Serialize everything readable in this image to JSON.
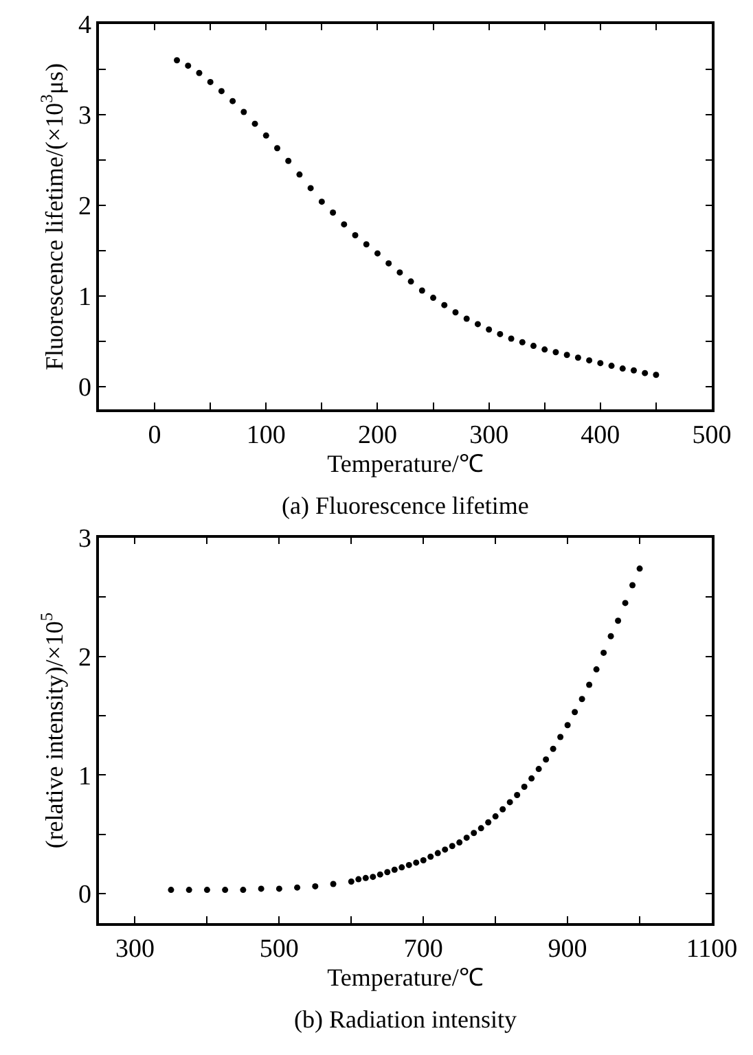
{
  "chart_data": [
    {
      "type": "scatter",
      "title": "(a) Fluorescence lifetime",
      "xlabel": "Temperature/℃",
      "ylabel": "Fluorescence lifetime/(×10$^{3}$μs)",
      "marker": "circle",
      "x": [
        20,
        30,
        40,
        50,
        60,
        70,
        80,
        90,
        100,
        110,
        120,
        130,
        140,
        150,
        160,
        170,
        180,
        190,
        200,
        210,
        220,
        230,
        240,
        250,
        260,
        270,
        280,
        290,
        300,
        310,
        320,
        330,
        340,
        350,
        360,
        370,
        380,
        390,
        400,
        410,
        420,
        430,
        440,
        450
      ],
      "series": [
        {
          "color": "#000000",
          "values": [
            3.6,
            3.54,
            3.46,
            3.36,
            3.26,
            3.15,
            3.03,
            2.9,
            2.77,
            2.63,
            2.49,
            2.34,
            2.19,
            2.04,
            1.92,
            1.79,
            1.67,
            1.57,
            1.47,
            1.36,
            1.26,
            1.16,
            1.06,
            0.98,
            0.9,
            0.82,
            0.75,
            0.69,
            0.63,
            0.58,
            0.53,
            0.49,
            0.45,
            0.41,
            0.38,
            0.35,
            0.32,
            0.29,
            0.26,
            0.23,
            0.2,
            0.18,
            0.15,
            0.13
          ]
        }
      ],
      "xlim": [
        -50,
        500
      ],
      "xticks": [
        0,
        {
          "value": 50,
          "label": null
        },
        100,
        {
          "value": 150,
          "label": null
        },
        200,
        {
          "value": 250,
          "label": null
        },
        300,
        {
          "value": 350,
          "label": null
        },
        400,
        {
          "value": 450,
          "label": null
        },
        500
      ],
      "ylim": [
        -0.25,
        4
      ],
      "yticks": [
        0,
        {
          "value": 0.5,
          "label": null
        },
        1,
        {
          "value": 1.5,
          "label": null
        },
        2,
        {
          "value": 2.5,
          "label": null
        },
        3,
        {
          "value": 3.5,
          "label": null
        },
        4
      ]
    },
    {
      "type": "scatter",
      "title": "(b) Radiation intensity",
      "xlabel": "Temperature/℃",
      "ylabel": "(relative intensity)/×10$^{5}$",
      "marker": "circle",
      "x": [
        350,
        375,
        400,
        425,
        450,
        475,
        500,
        525,
        550,
        575,
        600,
        610,
        620,
        630,
        640,
        650,
        660,
        670,
        680,
        690,
        700,
        710,
        720,
        730,
        740,
        750,
        760,
        770,
        780,
        790,
        800,
        810,
        820,
        830,
        840,
        850,
        860,
        870,
        880,
        890,
        900,
        910,
        920,
        930,
        940,
        950,
        960,
        970,
        980,
        990,
        1000
      ],
      "series": [
        {
          "color": "#000000",
          "values": [
            0.03,
            0.03,
            0.03,
            0.03,
            0.03,
            0.04,
            0.04,
            0.05,
            0.06,
            0.08,
            0.1,
            0.12,
            0.13,
            0.14,
            0.16,
            0.18,
            0.2,
            0.22,
            0.24,
            0.26,
            0.28,
            0.31,
            0.34,
            0.37,
            0.4,
            0.43,
            0.47,
            0.51,
            0.55,
            0.6,
            0.65,
            0.71,
            0.77,
            0.83,
            0.9,
            0.97,
            1.05,
            1.13,
            1.22,
            1.32,
            1.42,
            1.53,
            1.64,
            1.76,
            1.89,
            2.03,
            2.17,
            2.3,
            2.45,
            2.6,
            2.74
          ]
        }
      ],
      "xlim": [
        250,
        1100
      ],
      "xticks": [
        300,
        {
          "value": 400,
          "label": null
        },
        500,
        {
          "value": 600,
          "label": null
        },
        700,
        {
          "value": 800,
          "label": null
        },
        900,
        {
          "value": 1000,
          "label": null
        },
        1100
      ],
      "ylim": [
        -0.25,
        3
      ],
      "yticks": [
        0,
        {
          "value": 0.5,
          "label": null
        },
        1,
        {
          "value": 1.5,
          "label": null
        },
        2,
        {
          "value": 2.5,
          "label": null
        },
        3
      ]
    }
  ]
}
